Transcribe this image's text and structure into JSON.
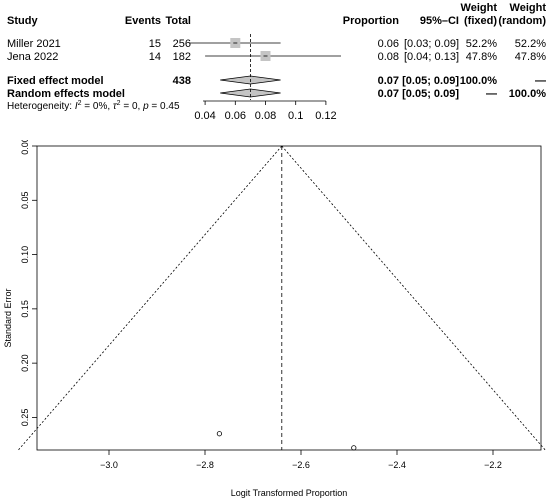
{
  "forest": {
    "headers": {
      "study": "Study",
      "events": "Events",
      "total": "Total",
      "proportion": "Proportion",
      "ci": "95%–CI",
      "weight_fixed_1": "Weight",
      "weight_fixed_2": "(fixed)",
      "weight_random_1": "Weight",
      "weight_random_2": "(random)"
    },
    "studies": [
      {
        "name": "Miller 2021",
        "events": "15",
        "total": "256",
        "prop": 0.06,
        "lo": 0.03,
        "hi": 0.09,
        "prop_text": "0.06",
        "ci_text": "[0.03; 0.09]",
        "w_fixed": "52.2%",
        "w_random": "52.2%"
      },
      {
        "name": "Jena 2022",
        "events": "14",
        "total": "182",
        "prop": 0.08,
        "lo": 0.04,
        "hi": 0.13,
        "prop_text": "0.08",
        "ci_text": "[0.04; 0.13]",
        "w_fixed": "47.8%",
        "w_random": "47.8%"
      }
    ],
    "summaries": [
      {
        "name": "Fixed effect model",
        "total": "438",
        "est": 0.07,
        "lo": 0.05,
        "hi": 0.09,
        "prop_text": "0.07",
        "ci_text": "[0.05; 0.09]",
        "w_fixed": "100.0%",
        "w_random": "—"
      },
      {
        "name": "Random effects model",
        "total": "",
        "est": 0.07,
        "lo": 0.05,
        "hi": 0.09,
        "prop_text": "0.07",
        "ci_text": "[0.05; 0.09]",
        "w_fixed": "—",
        "w_random": "100.0%"
      }
    ],
    "heterogeneity": {
      "prefix": "Heterogeneity: ",
      "i2_label": "I",
      "i2_sup": "2",
      "i2_value": " = 0%, ",
      "tau_label": "τ",
      "tau_sup": "2",
      "tau_value": " = 0, ",
      "p_label": "p",
      "p_value": " = 0.45"
    },
    "axis": {
      "min": 0.03,
      "max": 0.13,
      "ticks": [
        0.04,
        0.06,
        0.08,
        0.1,
        0.12
      ],
      "tick_labels": [
        "0.04",
        "0.06",
        "0.08",
        "0.1",
        "0.12"
      ]
    }
  },
  "chart_data": {
    "type": "scatter",
    "subtype": "funnel plot",
    "xlabel": "Logit Transformed Proportion",
    "ylabel": "Standard Error",
    "xlim": [
      -3.15,
      -2.1
    ],
    "ylim": [
      0.28,
      0.0
    ],
    "y_axis_reversed": true,
    "xticks": [
      -3.0,
      -2.8,
      -2.6,
      -2.4,
      -2.2
    ],
    "xtick_labels": [
      "−3.0",
      "−2.8",
      "−2.6",
      "−2.4",
      "−2.2"
    ],
    "yticks": [
      0.0,
      0.05,
      0.1,
      0.15,
      0.2,
      0.25
    ],
    "ytick_labels": [
      "0.00",
      "0.05",
      "0.10",
      "0.15",
      "0.20",
      "0.25"
    ],
    "pooled_estimate": -2.64,
    "points": [
      {
        "x": -2.77,
        "y": 0.265
      },
      {
        "x": -2.49,
        "y": 0.278
      }
    ],
    "funnel_multiplier": 1.96,
    "grid": false
  }
}
